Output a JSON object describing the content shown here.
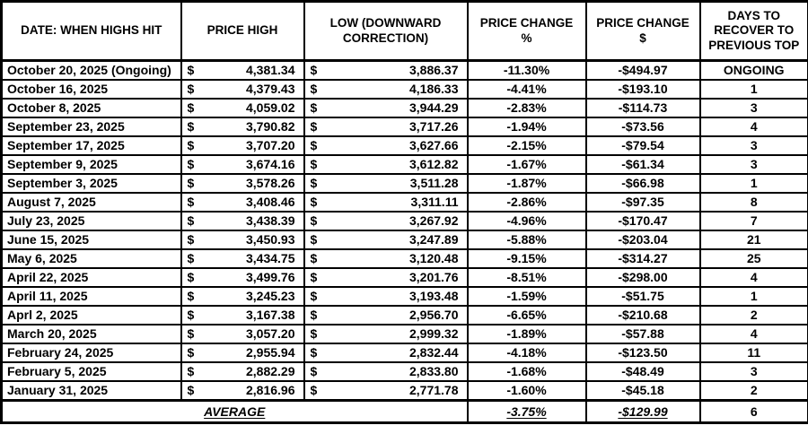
{
  "table": {
    "currency_symbol": "$",
    "headers": [
      "DATE: WHEN HIGHS HIT",
      "PRICE HIGH",
      "LOW (DOWNWARD CORRECTION)",
      "PRICE CHANGE %",
      "PRICE CHANGE $",
      "DAYS TO RECOVER TO PREVIOUS TOP"
    ],
    "rows": [
      {
        "date": "October 20, 2025 (Ongoing)",
        "high": "4,381.34",
        "low": "3,886.37",
        "pct": "-11.30%",
        "chg": "-$494.97",
        "days": "ONGOING"
      },
      {
        "date": "October 16, 2025",
        "high": "4,379.43",
        "low": "4,186.33",
        "pct": "-4.41%",
        "chg": "-$193.10",
        "days": "1"
      },
      {
        "date": "October 8, 2025",
        "high": "4,059.02",
        "low": "3,944.29",
        "pct": "-2.83%",
        "chg": "-$114.73",
        "days": "3"
      },
      {
        "date": "September 23, 2025",
        "high": "3,790.82",
        "low": "3,717.26",
        "pct": "-1.94%",
        "chg": "-$73.56",
        "days": "4"
      },
      {
        "date": "September 17, 2025",
        "high": "3,707.20",
        "low": "3,627.66",
        "pct": "-2.15%",
        "chg": "-$79.54",
        "days": "3"
      },
      {
        "date": "September 9, 2025",
        "high": "3,674.16",
        "low": "3,612.82",
        "pct": "-1.67%",
        "chg": "-$61.34",
        "days": "3"
      },
      {
        "date": "September 3, 2025",
        "high": "3,578.26",
        "low": "3,511.28",
        "pct": "-1.87%",
        "chg": "-$66.98",
        "days": "1"
      },
      {
        "date": "August 7, 2025",
        "high": "3,408.46",
        "low": "3,311.11",
        "pct": "-2.86%",
        "chg": "-$97.35",
        "days": "8"
      },
      {
        "date": "July 23, 2025",
        "high": "3,438.39",
        "low": "3,267.92",
        "pct": "-4.96%",
        "chg": "-$170.47",
        "days": "7"
      },
      {
        "date": "June 15, 2025",
        "high": "3,450.93",
        "low": "3,247.89",
        "pct": "-5.88%",
        "chg": "-$203.04",
        "days": "21"
      },
      {
        "date": "May 6, 2025",
        "high": "3,434.75",
        "low": "3,120.48",
        "pct": "-9.15%",
        "chg": "-$314.27",
        "days": "25"
      },
      {
        "date": "April 22, 2025",
        "high": "3,499.76",
        "low": "3,201.76",
        "pct": "-8.51%",
        "chg": "-$298.00",
        "days": "4"
      },
      {
        "date": "April 11, 2025",
        "high": "3,245.23",
        "low": "3,193.48",
        "pct": "-1.59%",
        "chg": "-$51.75",
        "days": "1"
      },
      {
        "date": "Aprl 2, 2025",
        "high": "3,167.38",
        "low": "2,956.70",
        "pct": "-6.65%",
        "chg": "-$210.68",
        "days": "2"
      },
      {
        "date": "March 20, 2025",
        "high": "3,057.20",
        "low": "2,999.32",
        "pct": "-1.89%",
        "chg": "-$57.88",
        "days": "4"
      },
      {
        "date": "February 24, 2025",
        "high": "2,955.94",
        "low": "2,832.44",
        "pct": "-4.18%",
        "chg": "-$123.50",
        "days": "11"
      },
      {
        "date": "February 5, 2025",
        "high": "2,882.29",
        "low": "2,833.80",
        "pct": "-1.68%",
        "chg": "-$48.49",
        "days": "3"
      },
      {
        "date": "January 31, 2025",
        "high": "2,816.96",
        "low": "2,771.78",
        "pct": "-1.60%",
        "chg": "-$45.18",
        "days": "2"
      }
    ],
    "average": {
      "label": "AVERAGE",
      "pct": "-3.75%",
      "chg": "-$129.99",
      "days": "6"
    }
  }
}
